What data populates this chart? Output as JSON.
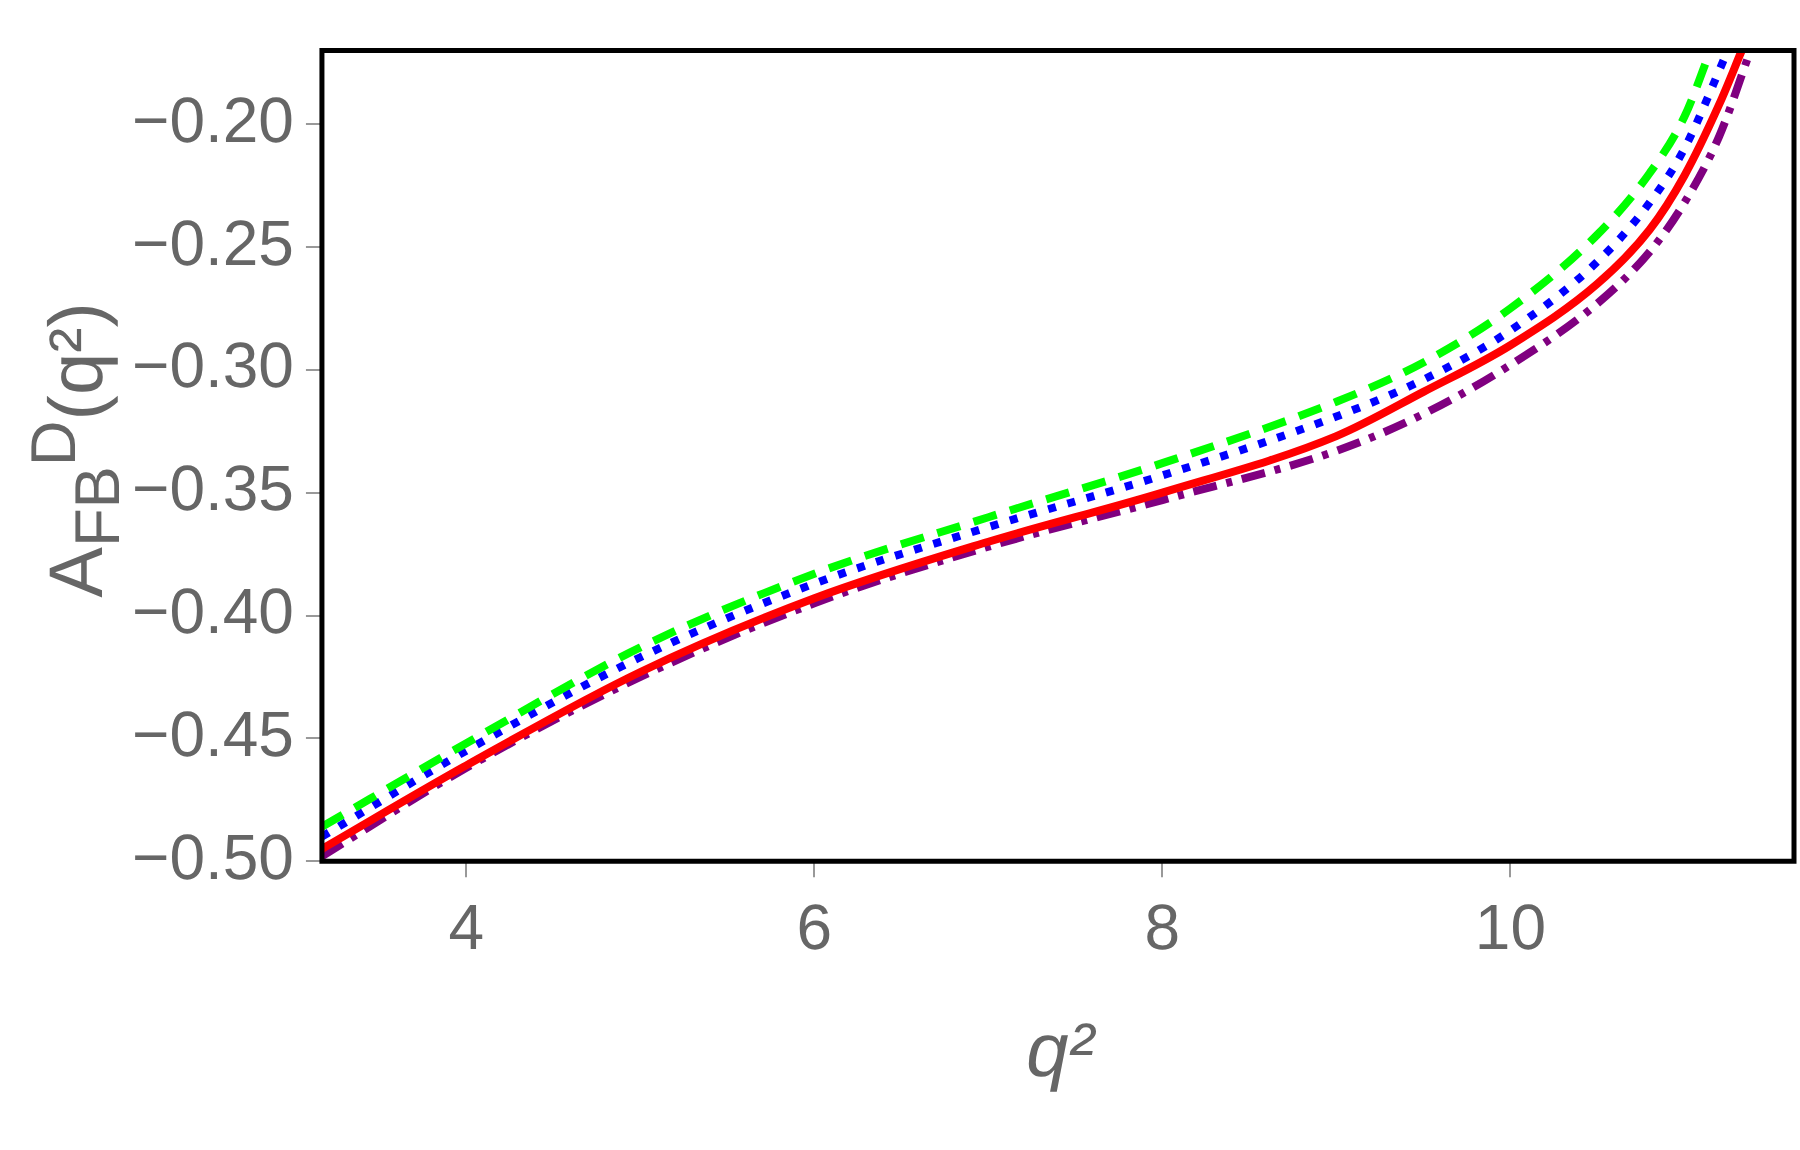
{
  "chart_data": {
    "type": "line",
    "xlabel": "q²",
    "ylabel": "A$_{FB}$$^{D}$(q²)",
    "xlim": [
      3.17,
      11.63
    ],
    "xticks": [
      4,
      6,
      8,
      10
    ],
    "ylim": [
      -0.5,
      -0.17
    ],
    "yticks": [
      {
        "value": -0.5,
        "label": "−0.50"
      },
      {
        "value": -0.45,
        "label": "−0.45"
      },
      {
        "value": -0.4,
        "label": "−0.40"
      },
      {
        "value": -0.35,
        "label": "−0.35"
      },
      {
        "value": -0.3,
        "label": "−0.30"
      },
      {
        "value": -0.25,
        "label": "−0.25"
      },
      {
        "value": -0.2,
        "label": "−0.20"
      }
    ],
    "grid": false,
    "legend": false,
    "marker": "none",
    "series": [
      {
        "color": "#00ff00",
        "line_style": "dashed",
        "x": [
          3.17,
          4,
          5,
          6,
          7,
          8,
          9,
          9.5,
          10,
          10.5,
          10.8,
          11,
          11.15
        ],
        "values": [
          -0.486,
          -0.452,
          -0.413,
          -0.383,
          -0.36,
          -0.338,
          -0.313,
          -0.297,
          -0.275,
          -0.245,
          -0.22,
          -0.197,
          -0.17
        ]
      },
      {
        "color": "#0000ff",
        "line_style": "dotted",
        "x": [
          3.17,
          4,
          5,
          6,
          7,
          8,
          9,
          9.5,
          10,
          10.5,
          10.8,
          11,
          11.25
        ],
        "values": [
          -0.49,
          -0.455,
          -0.417,
          -0.387,
          -0.364,
          -0.343,
          -0.319,
          -0.304,
          -0.284,
          -0.256,
          -0.232,
          -0.21,
          -0.17
        ]
      },
      {
        "color": "#ff0000",
        "line_style": "solid",
        "x": [
          3.17,
          4,
          5,
          6,
          7,
          8,
          9,
          9.5,
          10,
          10.5,
          10.8,
          11,
          11.2,
          11.33
        ],
        "values": [
          -0.495,
          -0.461,
          -0.423,
          -0.393,
          -0.37,
          -0.35,
          -0.327,
          -0.309,
          -0.29,
          -0.265,
          -0.243,
          -0.221,
          -0.192,
          -0.17
        ]
      },
      {
        "color": "#800080",
        "line_style": "dashdot",
        "x": [
          3.17,
          4,
          5,
          6,
          7,
          8,
          9,
          9.5,
          10,
          10.5,
          10.8,
          11,
          11.2,
          11.38
        ],
        "values": [
          -0.498,
          -0.462,
          -0.425,
          -0.395,
          -0.372,
          -0.353,
          -0.333,
          -0.318,
          -0.298,
          -0.273,
          -0.252,
          -0.232,
          -0.205,
          -0.17
        ]
      }
    ]
  }
}
